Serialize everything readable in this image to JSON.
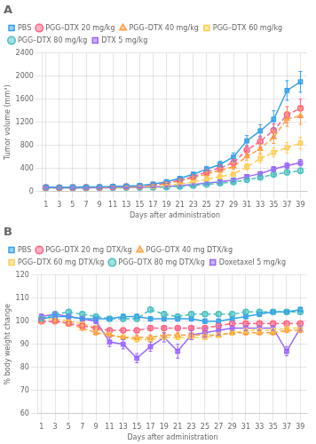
{
  "chart_data": [
    {
      "type": "line",
      "title": "A",
      "xlabel": "Days after administration",
      "ylabel": "Tumor volume (mm³)",
      "x": [
        1,
        3,
        5,
        7,
        9,
        11,
        13,
        15,
        17,
        19,
        21,
        23,
        25,
        27,
        29,
        31,
        33,
        35,
        37,
        39
      ],
      "xlim": [
        0.5,
        40
      ],
      "xticks": [
        1,
        3,
        5,
        7,
        9,
        11,
        13,
        15,
        17,
        19,
        21,
        23,
        25,
        27,
        29,
        31,
        33,
        35,
        37,
        39
      ],
      "ylim": [
        0,
        2400
      ],
      "yticks": [
        0,
        400,
        800,
        1200,
        1600,
        2000,
        2400
      ],
      "grid": true,
      "legend": "upper left",
      "series": [
        {
          "name": "PBS",
          "marker": "square",
          "line_style": "solid",
          "values": [
            80,
            75,
            78,
            80,
            82,
            90,
            95,
            105,
            130,
            170,
            230,
            300,
            390,
            470,
            600,
            880,
            1050,
            1250,
            1750,
            1900
          ],
          "errors": [
            8,
            8,
            8,
            8,
            8,
            10,
            10,
            12,
            18,
            22,
            28,
            38,
            48,
            58,
            70,
            90,
            110,
            150,
            170,
            180
          ]
        },
        {
          "name": "PGG–DTX 20 mg/kg",
          "marker": "circle",
          "line_style": "dashed",
          "values": [
            75,
            70,
            72,
            73,
            75,
            82,
            88,
            95,
            115,
            150,
            200,
            260,
            340,
            410,
            500,
            720,
            870,
            1060,
            1330,
            1440
          ],
          "errors": [
            8,
            8,
            8,
            8,
            8,
            10,
            10,
            12,
            16,
            20,
            25,
            32,
            42,
            50,
            60,
            75,
            92,
            115,
            140,
            160
          ]
        },
        {
          "name": "PGG–DTX 40 mg/kg",
          "marker": "triangle",
          "line_style": "dashed",
          "values": [
            72,
            68,
            70,
            71,
            73,
            78,
            84,
            90,
            108,
            140,
            185,
            240,
            305,
            365,
            435,
            610,
            740,
            940,
            1260,
            1310
          ],
          "errors": [
            8,
            8,
            8,
            8,
            8,
            8,
            10,
            10,
            14,
            18,
            22,
            28,
            36,
            44,
            52,
            65,
            82,
            105,
            128,
            145
          ]
        },
        {
          "name": "PGG–DTX 60 mg/kg",
          "marker": "square",
          "line_style": "dashed",
          "values": [
            70,
            66,
            68,
            68,
            70,
            74,
            78,
            82,
            90,
            105,
            135,
            168,
            215,
            258,
            300,
            430,
            570,
            680,
            760,
            840
          ],
          "errors": [
            7,
            7,
            7,
            7,
            7,
            7,
            8,
            8,
            10,
            13,
            16,
            20,
            26,
            32,
            38,
            52,
            68,
            80,
            90,
            100
          ]
        },
        {
          "name": "PGG–DTX 80 mg/kg",
          "marker": "circle",
          "line_style": "dashed",
          "values": [
            65,
            62,
            64,
            64,
            65,
            66,
            68,
            70,
            73,
            78,
            90,
            105,
            125,
            145,
            165,
            205,
            248,
            295,
            335,
            360
          ],
          "errors": [
            6,
            6,
            6,
            6,
            6,
            6,
            6,
            7,
            8,
            9,
            10,
            13,
            16,
            18,
            20,
            26,
            32,
            38,
            43,
            48
          ]
        },
        {
          "name": "DTX 5 mg/kg",
          "marker": "square",
          "line_style": "solid",
          "values": [
            68,
            65,
            66,
            67,
            68,
            70,
            72,
            75,
            80,
            88,
            105,
            122,
            148,
            170,
            200,
            260,
            310,
            390,
            450,
            500
          ],
          "errors": [
            7,
            7,
            7,
            7,
            7,
            7,
            7,
            8,
            8,
            10,
            12,
            15,
            18,
            20,
            24,
            28,
            35,
            42,
            50,
            56
          ]
        }
      ]
    },
    {
      "type": "line",
      "title": "B",
      "xlabel": "Days after administration",
      "ylabel": "% body weight change",
      "x": [
        1,
        3,
        5,
        7,
        9,
        11,
        13,
        15,
        17,
        19,
        21,
        23,
        25,
        27,
        29,
        31,
        33,
        35,
        37,
        39
      ],
      "xlim": [
        0.5,
        40
      ],
      "xticks": [
        1,
        3,
        5,
        7,
        9,
        11,
        13,
        15,
        17,
        19,
        21,
        23,
        25,
        27,
        29,
        31,
        33,
        35,
        37,
        39
      ],
      "ylim": [
        60,
        120
      ],
      "yticks": [
        60,
        70,
        80,
        90,
        100,
        110,
        120
      ],
      "grid": true,
      "legend": "upper left",
      "series": [
        {
          "name": "PBS",
          "marker": "square",
          "line_style": "solid",
          "values": [
            101,
            102,
            102,
            101,
            101,
            101,
            102,
            102,
            101,
            101,
            101,
            101,
            100,
            100,
            101,
            102,
            103,
            104,
            104,
            105
          ],
          "errors": [
            1,
            1,
            1,
            1,
            1,
            1,
            1,
            1,
            1,
            1,
            1,
            1,
            1,
            1,
            1,
            1,
            1,
            1,
            1,
            1
          ]
        },
        {
          "name": "PGG–DTX 20 mg DTX/kg",
          "marker": "circle",
          "line_style": "dashed",
          "values": [
            100,
            100,
            99,
            98,
            97,
            96,
            96,
            96,
            97,
            97,
            97,
            97,
            97,
            98,
            99,
            99,
            99,
            99,
            99,
            99
          ],
          "errors": [
            1,
            1,
            1,
            1,
            1,
            1,
            1,
            1,
            1,
            1,
            1,
            1,
            1,
            1,
            1,
            1,
            1,
            1,
            1,
            1
          ]
        },
        {
          "name": "PGG–DTX 40 mg DTX/kg",
          "marker": "triangle",
          "line_style": "dashed",
          "values": [
            100,
            100,
            99,
            97,
            95,
            94,
            93,
            93,
            93,
            94,
            94,
            94,
            94,
            94,
            95,
            95,
            95,
            95,
            96,
            96
          ],
          "errors": [
            1,
            1,
            1,
            1,
            1,
            1,
            1,
            1,
            1,
            1,
            1,
            1,
            1,
            1,
            1,
            1,
            1,
            1,
            1,
            1
          ]
        },
        {
          "name": "PGG–DTX 60 mg DTX/kg",
          "marker": "square",
          "line_style": "dashed",
          "values": [
            101,
            101,
            100,
            99,
            97,
            94,
            93,
            92,
            92,
            93,
            93,
            93,
            93,
            94,
            95,
            96,
            96,
            96,
            97,
            97
          ],
          "errors": [
            1,
            1,
            1,
            1,
            1,
            1,
            1,
            1,
            1,
            1,
            1,
            1,
            1,
            1,
            1,
            1,
            1,
            1,
            1,
            1
          ]
        },
        {
          "name": "PGG–DTX 80 mg DTX/kg",
          "marker": "circle",
          "line_style": "dashed",
          "values": [
            101,
            103,
            104,
            103,
            102,
            101,
            101,
            101,
            105,
            103,
            102,
            103,
            103,
            103,
            103,
            104,
            104,
            104,
            104,
            104
          ],
          "errors": [
            1,
            1,
            1,
            1,
            1,
            1,
            1,
            1,
            1,
            1,
            1,
            1,
            1,
            1,
            1,
            1,
            1,
            1,
            1,
            1
          ]
        },
        {
          "name": "Doxetaxel 5 mg/kg",
          "marker": "square",
          "line_style": "solid",
          "values": [
            102,
            103,
            102,
            101,
            100,
            91,
            90,
            84,
            89,
            93,
            87,
            94,
            95,
            96,
            97,
            97,
            97,
            97,
            87,
            97
          ],
          "errors": [
            1,
            1,
            1,
            1,
            1,
            2,
            2,
            2,
            2,
            2,
            3,
            2,
            2,
            2,
            1,
            1,
            1,
            1,
            2,
            1
          ]
        }
      ]
    }
  ]
}
